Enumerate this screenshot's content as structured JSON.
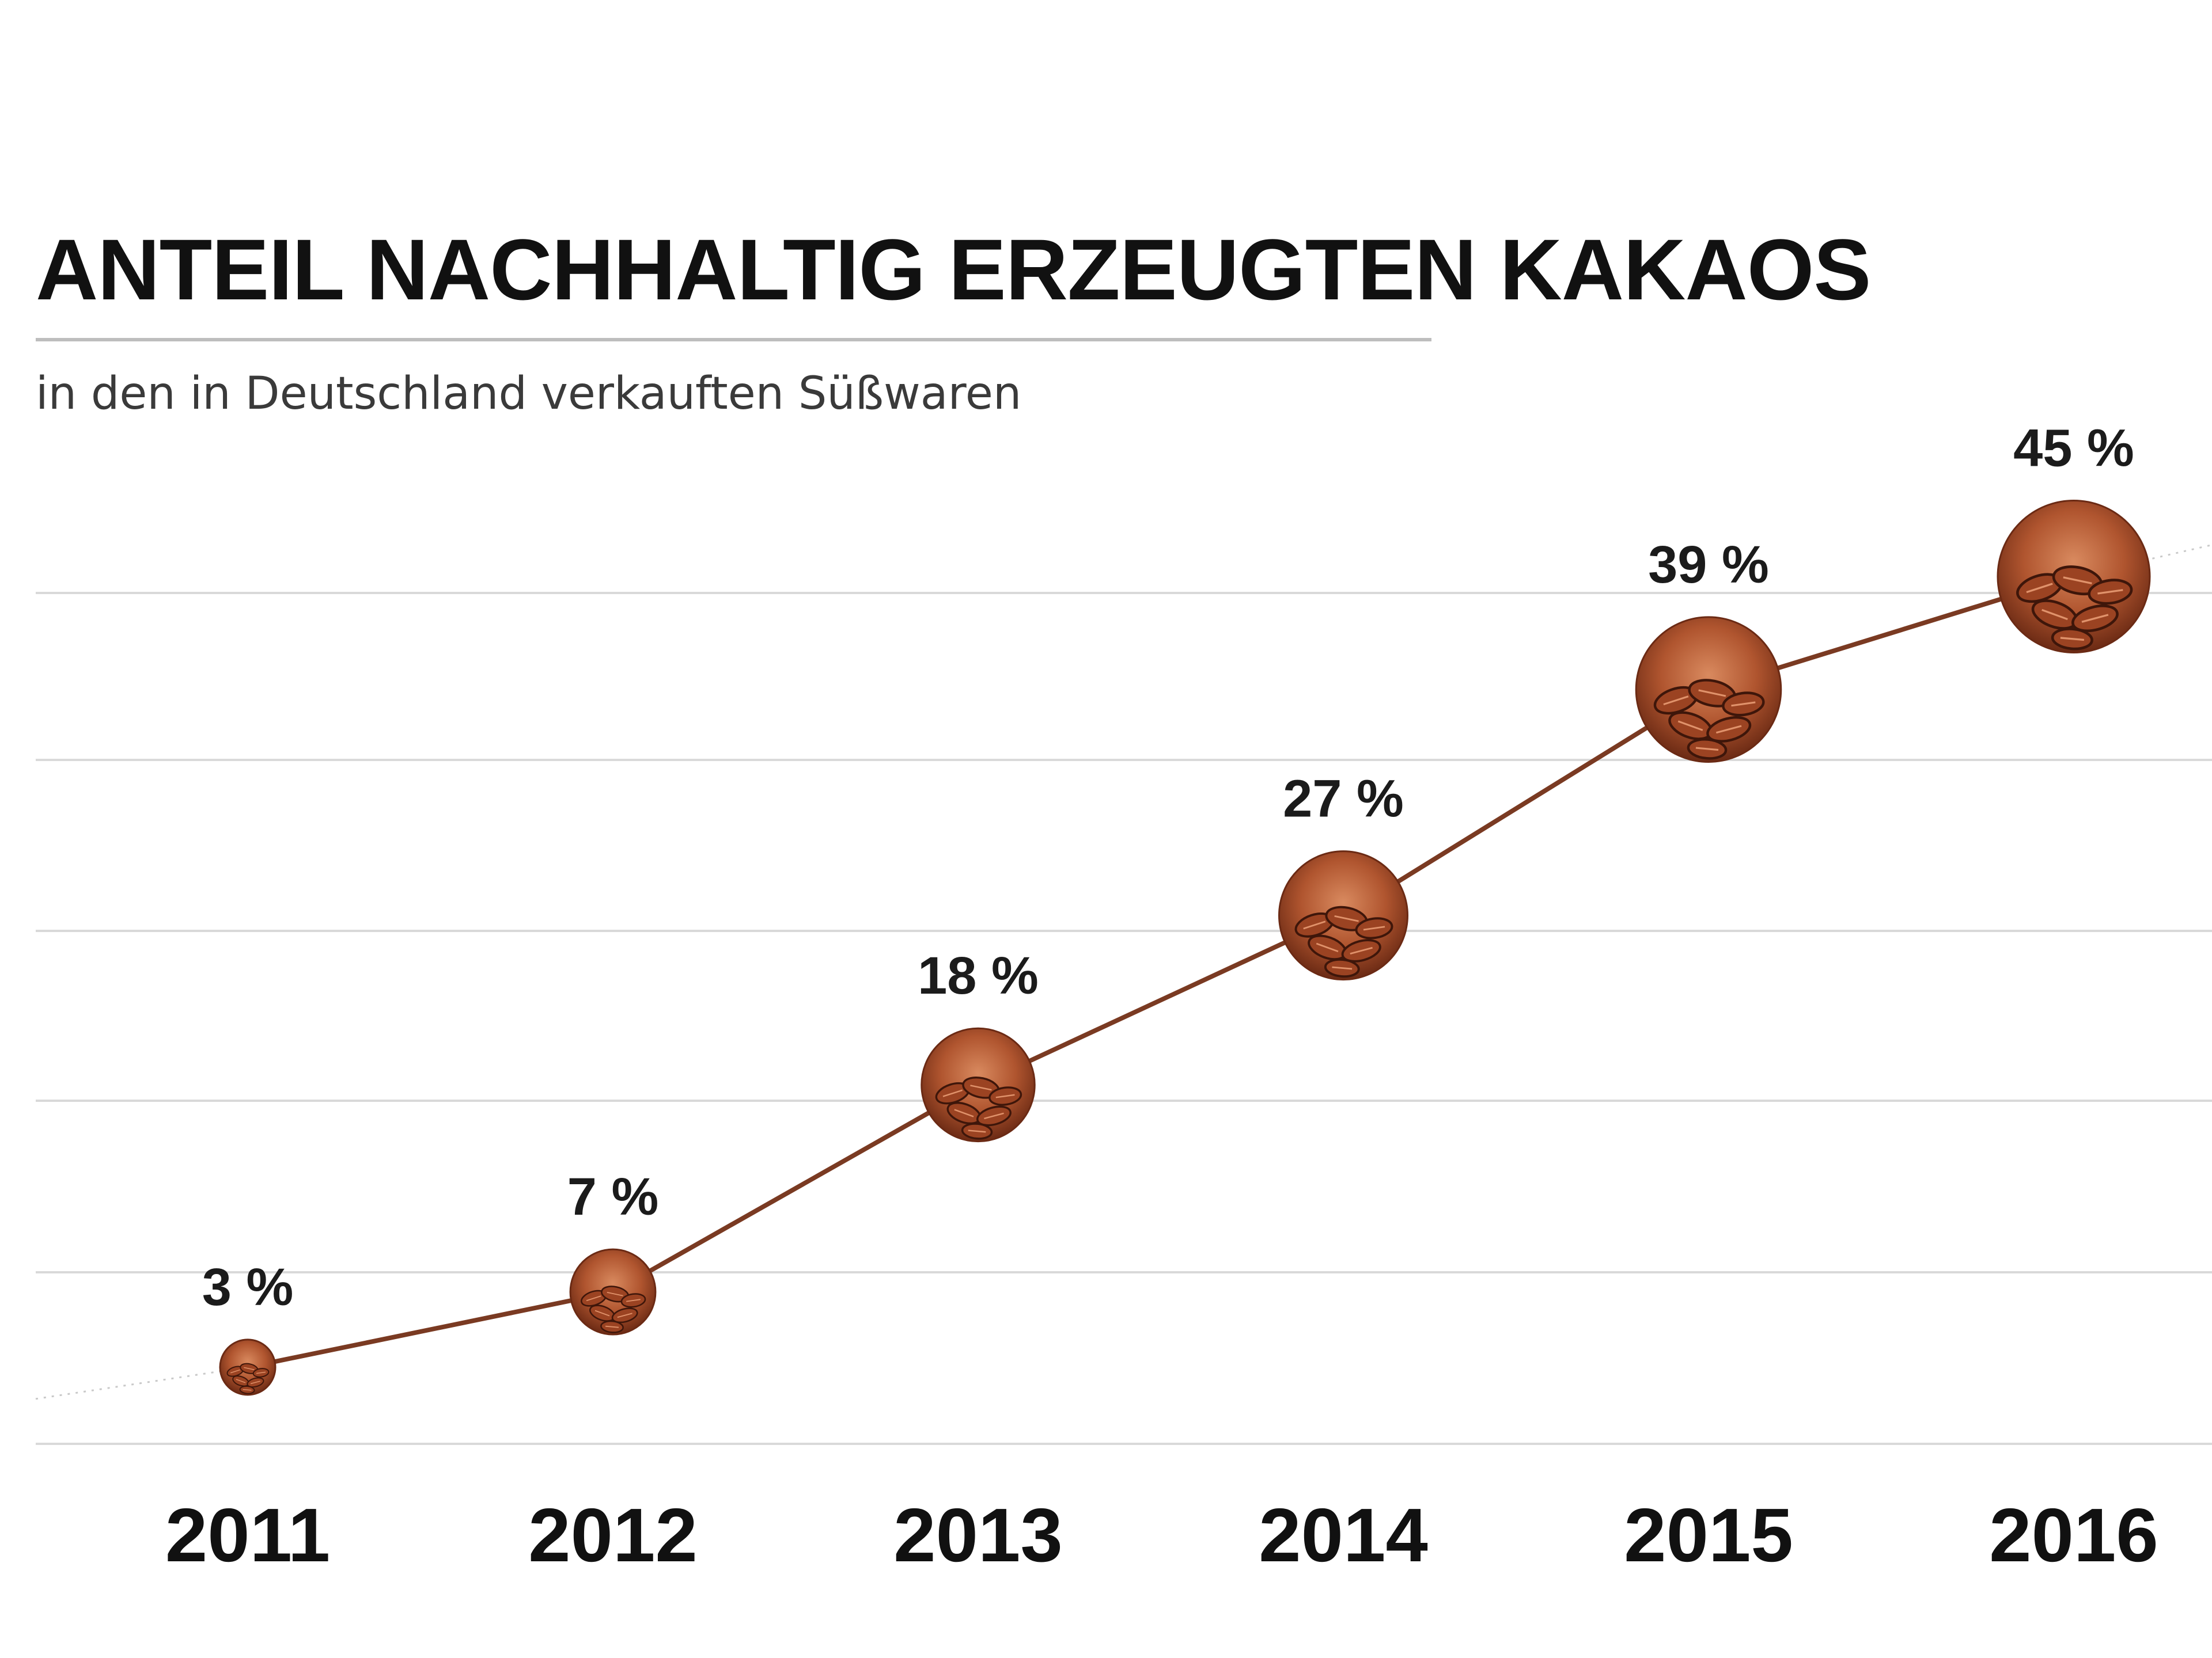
{
  "chart_data": {
    "type": "line",
    "title": "ANTEIL NACHHALTIG ERZEUGTEN KAKAOS",
    "subtitle": "in den in Deutschland verkauften Süßwaren",
    "categories": [
      "2011",
      "2012",
      "2013",
      "2014",
      "2015",
      "2016"
    ],
    "series": [
      {
        "values": [
          3,
          7,
          18,
          27,
          39,
          45
        ],
        "labels": [
          "3 %",
          "7 %",
          "18 %",
          "27 %",
          "39 %",
          "45 %"
        ]
      }
    ],
    "ylim": [
      0,
      50
    ],
    "grid": true,
    "legend": "none",
    "colors": {
      "line": "#7a3a22",
      "marker": "#b0552f",
      "marker_dark": "#6b2a14",
      "marker_light": "#e0926b",
      "grid": "#d9d9d9",
      "title_rule": "#bdbdbd",
      "text": "#111111"
    }
  }
}
